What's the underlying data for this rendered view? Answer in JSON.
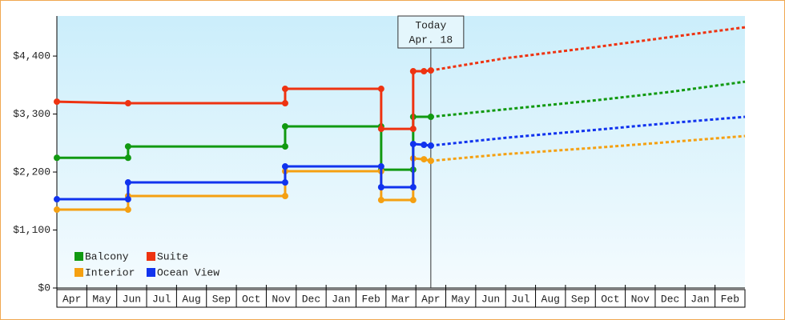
{
  "chart_data": {
    "type": "line",
    "xlim": [
      0,
      23
    ],
    "xticks": [
      {
        "value": 0.5,
        "label": "Apr"
      },
      {
        "value": 1.5,
        "label": "May"
      },
      {
        "value": 2.5,
        "label": "Jun"
      },
      {
        "value": 3.5,
        "label": "Jul"
      },
      {
        "value": 4.5,
        "label": "Aug"
      },
      {
        "value": 5.5,
        "label": "Sep"
      },
      {
        "value": 6.5,
        "label": "Oct"
      },
      {
        "value": 7.5,
        "label": "Nov"
      },
      {
        "value": 8.5,
        "label": "Dec"
      },
      {
        "value": 9.5,
        "label": "Jan"
      },
      {
        "value": 10.5,
        "label": "Feb"
      },
      {
        "value": 11.5,
        "label": "Mar"
      },
      {
        "value": 12.5,
        "label": "Apr"
      },
      {
        "value": 13.5,
        "label": "May"
      },
      {
        "value": 14.5,
        "label": "Jun"
      },
      {
        "value": 15.5,
        "label": "Jul"
      },
      {
        "value": 16.5,
        "label": "Aug"
      },
      {
        "value": 17.5,
        "label": "Sep"
      },
      {
        "value": 18.5,
        "label": "Oct"
      },
      {
        "value": 19.5,
        "label": "Nov"
      },
      {
        "value": 20.5,
        "label": "Dec"
      },
      {
        "value": 21.5,
        "label": "Jan"
      },
      {
        "value": 22.5,
        "label": "Feb"
      }
    ],
    "ylim": [
      0,
      5160
    ],
    "yticks": [
      {
        "value": 0,
        "label": "$0"
      },
      {
        "value": 1100,
        "label": "$1,100"
      },
      {
        "value": 2200,
        "label": "$2,200"
      },
      {
        "value": 3300,
        "label": "$3,300"
      },
      {
        "value": 4400,
        "label": "$4,400"
      }
    ],
    "today": {
      "x": 12.5,
      "label": "Today",
      "date": "Apr. 18"
    },
    "legend": "lower left",
    "series": [
      {
        "name": "Balcony",
        "color": "#119911",
        "x": [
          0,
          2.38,
          2.38,
          7.63,
          7.63,
          10.84,
          10.84,
          11.91,
          11.91,
          12.5
        ],
        "values": [
          2470,
          2470,
          2685,
          2685,
          3065,
          3065,
          2245,
          2245,
          3247,
          3247
        ],
        "forecast_x": [
          12.5,
          15,
          18,
          20.5,
          23
        ],
        "forecast_values": [
          3247,
          3390,
          3560,
          3720,
          3914
        ]
      },
      {
        "name": "Suite",
        "color": "#ee3311",
        "x": [
          0,
          2.38,
          7.63,
          7.63,
          10.84,
          10.84,
          11.91,
          11.91,
          12.27,
          12.5
        ],
        "values": [
          3535,
          3505,
          3505,
          3778,
          3778,
          3019,
          3019,
          4112,
          4112,
          4127
        ],
        "forecast_x": [
          12.5,
          15,
          18,
          20.5,
          23
        ],
        "forecast_values": [
          4127,
          4360,
          4570,
          4760,
          4946
        ]
      },
      {
        "name": "Interior",
        "color": "#f5a011",
        "x": [
          0,
          2.38,
          2.38,
          7.63,
          7.63,
          10.84,
          10.84,
          11.91,
          11.91,
          12.27,
          12.5
        ],
        "values": [
          1487,
          1487,
          1745,
          1745,
          2215,
          2215,
          1669,
          1669,
          2458,
          2442,
          2412
        ],
        "forecast_x": [
          12.5,
          15,
          18,
          20.5,
          23
        ],
        "forecast_values": [
          2412,
          2540,
          2660,
          2770,
          2883
        ]
      },
      {
        "name": "Ocean View",
        "color": "#1133ee",
        "x": [
          0,
          2.38,
          2.38,
          7.63,
          7.63,
          10.84,
          10.84,
          11.91,
          11.91,
          12.27,
          12.5
        ],
        "values": [
          1684,
          1684,
          2003,
          2003,
          2306,
          2306,
          1912,
          1912,
          2731,
          2716,
          2701
        ],
        "forecast_x": [
          12.5,
          15,
          18,
          20.5,
          23
        ],
        "forecast_values": [
          2701,
          2850,
          3000,
          3130,
          3247
        ]
      }
    ]
  }
}
